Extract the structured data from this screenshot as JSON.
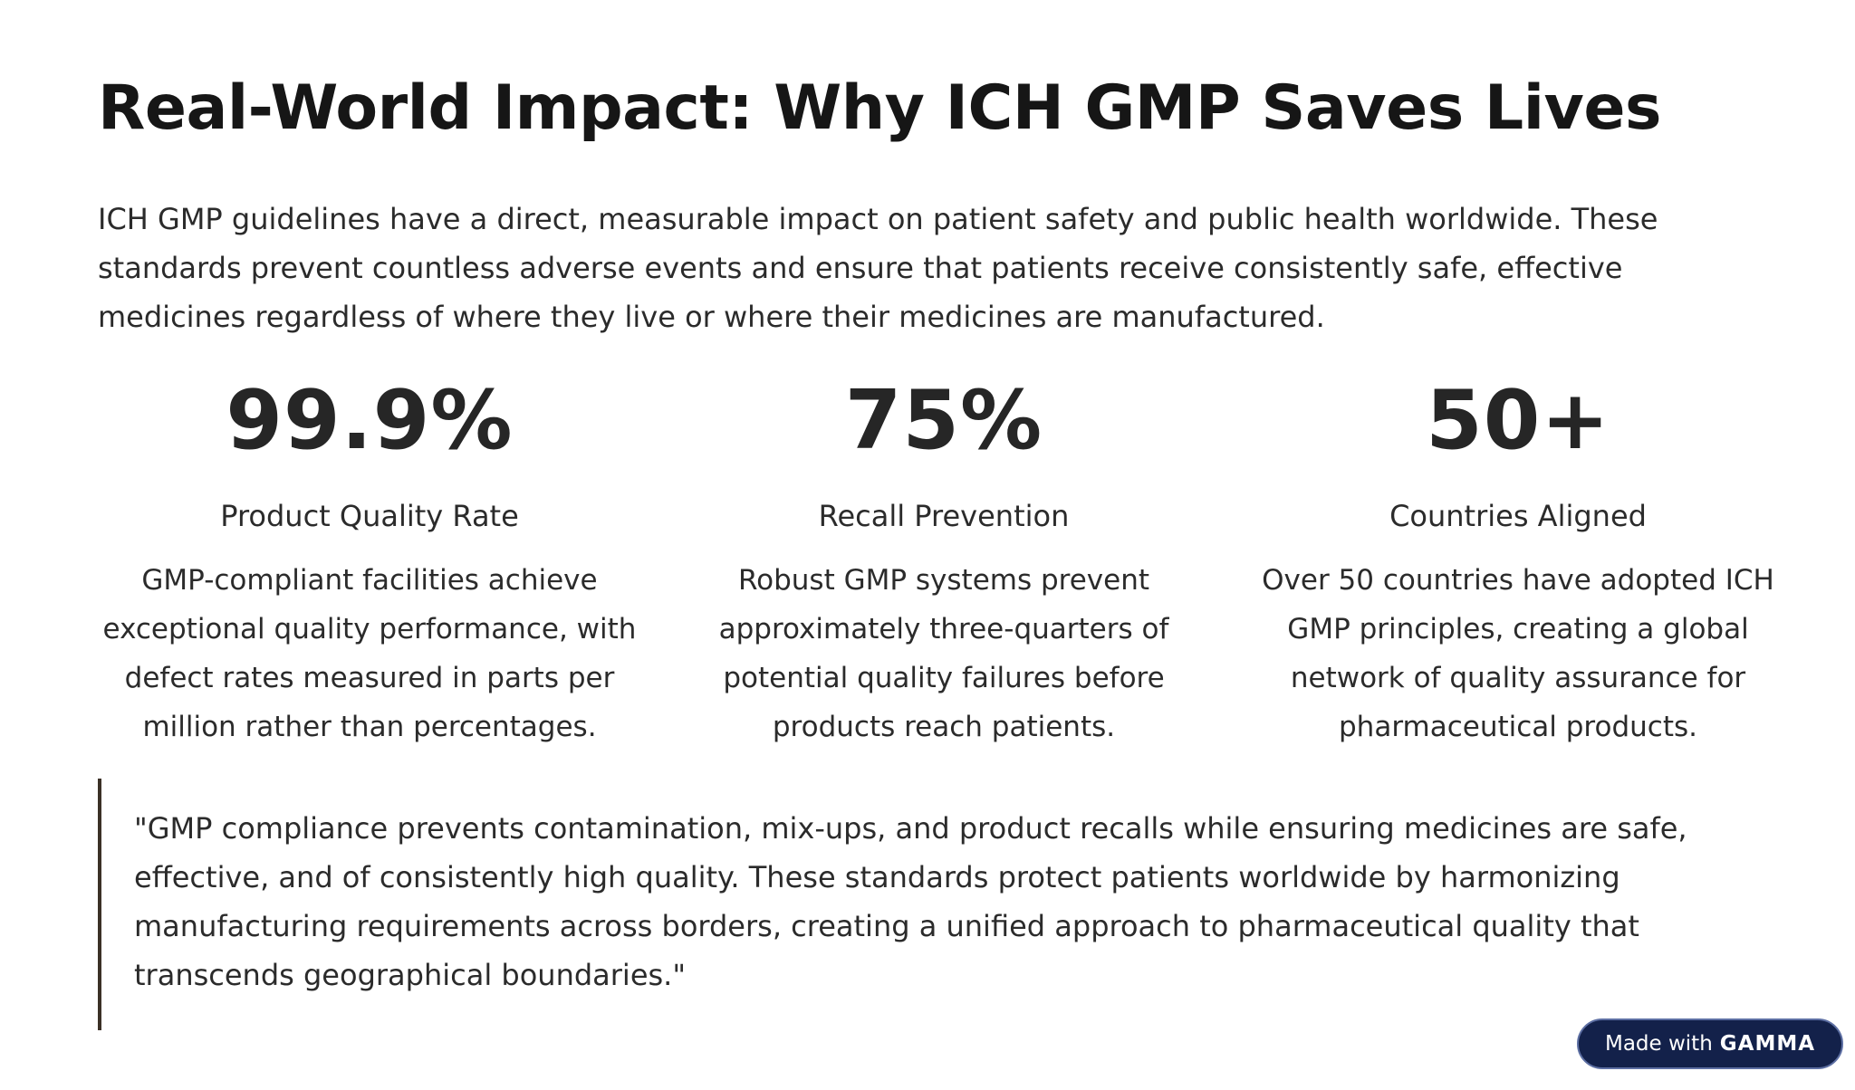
{
  "title": "Real-World Impact: Why ICH GMP Saves Lives",
  "intro": "ICH GMP guidelines have a direct, measurable impact on patient safety and public health worldwide. These standards prevent countless adverse events and ensure that patients receive consistently safe, effective medicines regardless of where they live or where their medicines are manufactured.",
  "stats": [
    {
      "value": "99.9%",
      "label": "Product Quality Rate",
      "description": "GMP-compliant facilities achieve exceptional quality performance, with defect rates measured in parts per million rather than percentages."
    },
    {
      "value": "75%",
      "label": "Recall Prevention",
      "description": "Robust GMP systems prevent approximately three-quarters of potential quality failures before products reach patients."
    },
    {
      "value": "50+",
      "label": "Countries Aligned",
      "description": "Over 50 countries have adopted ICH GMP principles, creating a global network of quality assurance for pharmaceutical products."
    }
  ],
  "quote": "\"GMP compliance prevents contamination, mix-ups, and product recalls while ensuring medicines are safe, effective, and of consistently high quality. These standards protect patients worldwide by harmonizing manufacturing requirements across borders, creating a unified approach to pharmaceutical quality that transcends geographical boundaries.\"",
  "badge": {
    "prefix": "Made with",
    "brand": "GAMMA"
  },
  "colors": {
    "text": "#1f1f1f",
    "quote_border": "#3b3026",
    "badge_background": "#13214a"
  }
}
